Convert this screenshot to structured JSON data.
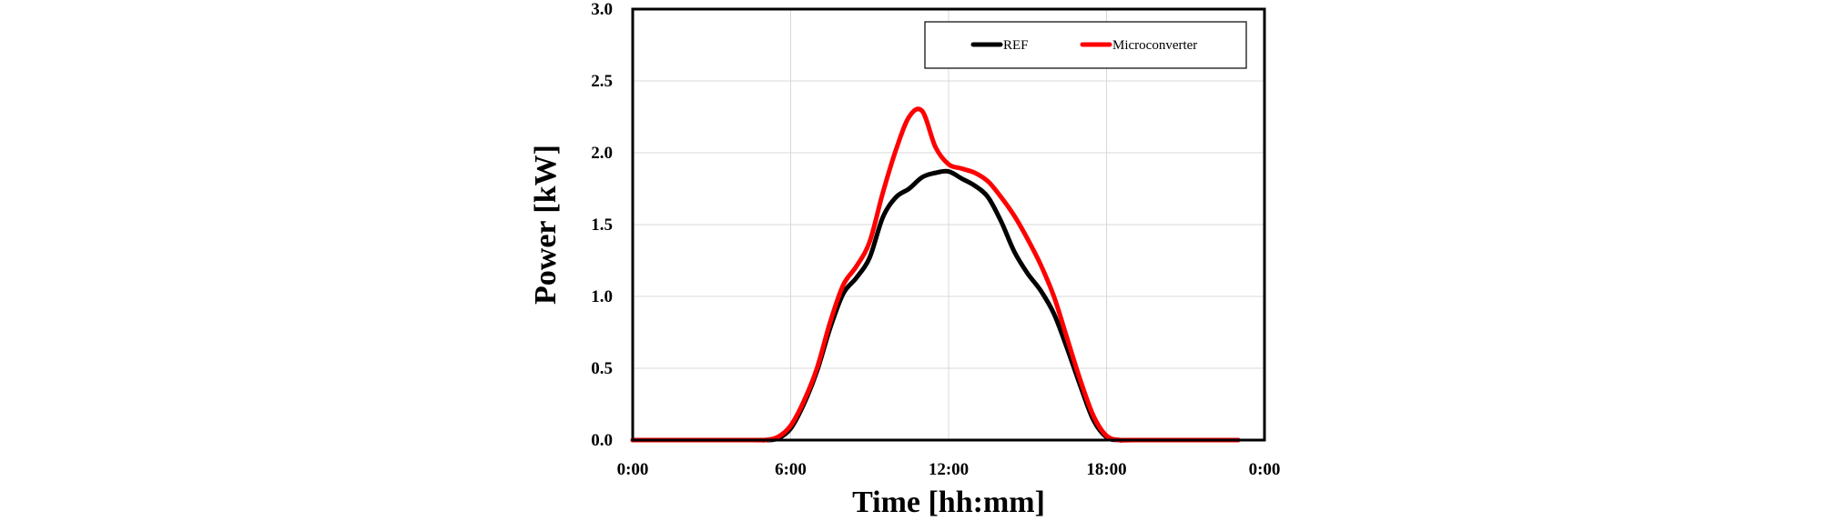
{
  "chart_data": {
    "type": "line",
    "xlabel": "Time [hh:mm]",
    "ylabel": "Power [kW]",
    "x_unit": "hours",
    "xlim": [
      0,
      24
    ],
    "ylim": [
      0,
      3.0
    ],
    "x_ticks": [
      0,
      6,
      12,
      18,
      24
    ],
    "x_tick_labels": [
      "0:00",
      "6:00",
      "12:00",
      "18:00",
      "0:00"
    ],
    "y_ticks": [
      0,
      0.5,
      1.0,
      1.5,
      2.0,
      2.5,
      3.0
    ],
    "y_tick_labels": [
      "0.0",
      "0.5",
      "1.0",
      "1.5",
      "2.0",
      "2.5",
      "3.0"
    ],
    "grid": true,
    "legend_position": "top-right",
    "series": [
      {
        "name": "REF",
        "color": "#000000",
        "x": [
          0,
          4.5,
          5.0,
          5.5,
          6.0,
          6.5,
          7.0,
          7.5,
          8.0,
          8.5,
          9.0,
          9.5,
          10.0,
          10.5,
          11.0,
          11.5,
          12.0,
          12.5,
          13.0,
          13.5,
          14.0,
          14.5,
          15.0,
          15.5,
          16.0,
          16.5,
          17.0,
          17.5,
          18.0,
          18.5,
          19.0,
          23.0
        ],
        "values": [
          0,
          0,
          0.0,
          0.01,
          0.08,
          0.25,
          0.48,
          0.78,
          1.02,
          1.13,
          1.27,
          1.55,
          1.69,
          1.75,
          1.83,
          1.86,
          1.87,
          1.82,
          1.77,
          1.69,
          1.52,
          1.31,
          1.16,
          1.04,
          0.88,
          0.64,
          0.38,
          0.14,
          0.02,
          0,
          0,
          0
        ]
      },
      {
        "name": "Microconverter",
        "color": "#ff0000",
        "x": [
          0,
          4.5,
          5.0,
          5.5,
          6.0,
          6.5,
          7.0,
          7.5,
          8.0,
          8.5,
          9.0,
          9.5,
          10.0,
          10.5,
          11.0,
          11.5,
          12.0,
          12.5,
          13.0,
          13.5,
          14.0,
          14.5,
          15.0,
          15.5,
          16.0,
          16.5,
          17.0,
          17.5,
          18.0,
          18.5,
          19.0,
          23.0
        ],
        "values": [
          0,
          0,
          0.0,
          0.02,
          0.1,
          0.27,
          0.5,
          0.82,
          1.08,
          1.21,
          1.38,
          1.72,
          2.02,
          2.25,
          2.29,
          2.04,
          1.92,
          1.89,
          1.86,
          1.8,
          1.69,
          1.56,
          1.4,
          1.22,
          1.0,
          0.71,
          0.42,
          0.17,
          0.03,
          0,
          0,
          0
        ]
      }
    ]
  }
}
